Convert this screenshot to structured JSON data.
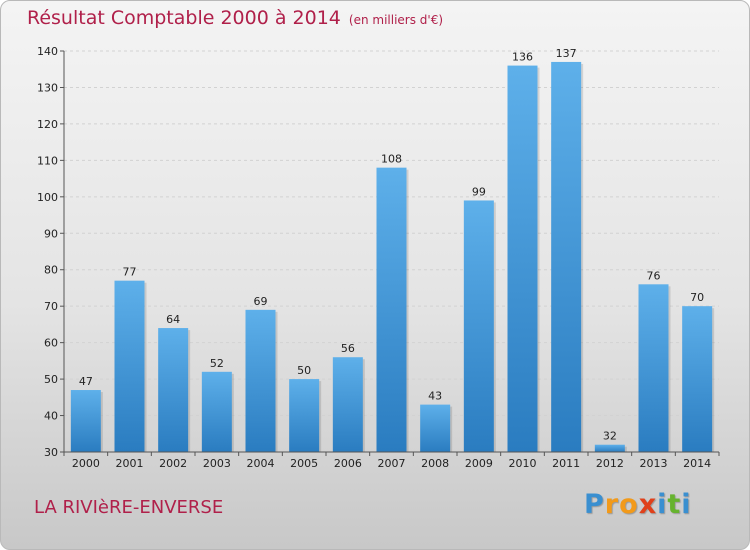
{
  "chart_data": {
    "type": "bar",
    "title": "Résultat Comptable 2000 à 2014",
    "unit_label": "(en milliers d'€)",
    "categories": [
      "2000",
      "2001",
      "2002",
      "2003",
      "2004",
      "2005",
      "2006",
      "2007",
      "2008",
      "2009",
      "2010",
      "2011",
      "2012",
      "2013",
      "2014"
    ],
    "values": [
      47,
      77,
      64,
      52,
      69,
      50,
      56,
      108,
      43,
      99,
      136,
      137,
      32,
      76,
      70
    ],
    "ylim": [
      30,
      140
    ],
    "yticks": [
      30,
      40,
      50,
      60,
      70,
      80,
      90,
      100,
      110,
      120,
      130,
      140
    ],
    "xlabel": "",
    "ylabel": "",
    "grid": true,
    "bar_color": "#4a9fdd"
  },
  "commune": "LA RIVIèRE-ENVERSE",
  "logo": {
    "letters": [
      "P",
      "r",
      "o",
      "x",
      "i",
      "t",
      "i"
    ],
    "colors": [
      "#3a8fd0",
      "#f29a1a",
      "#f29a1a",
      "#e0401a",
      "#3a8fd0",
      "#66b32e",
      "#3a8fd0"
    ]
  }
}
